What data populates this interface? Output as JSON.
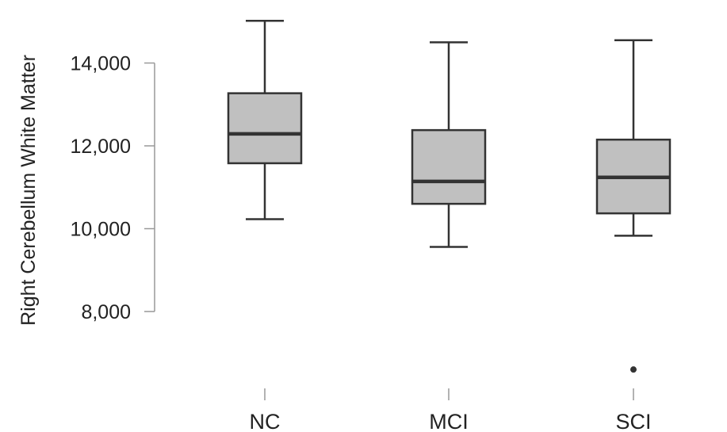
{
  "chart_data": {
    "type": "box",
    "title": "",
    "xlabel": "",
    "ylabel": "Right Cerebellum White Matter",
    "ylim": [
      6500,
      15200
    ],
    "yticks": [
      8000,
      10000,
      12000,
      14000
    ],
    "ytick_labels": [
      "8,000",
      "10,000",
      "12,000",
      "14,000"
    ],
    "grid": false,
    "categories": [
      "NC",
      "MCI",
      "SCI"
    ],
    "boxes": [
      {
        "category": "NC",
        "whisker_low": 10230,
        "q1": 11580,
        "median": 12290,
        "q3": 13270,
        "whisker_high": 15020,
        "outliers": []
      },
      {
        "category": "MCI",
        "whisker_low": 9560,
        "q1": 10600,
        "median": 11140,
        "q3": 12380,
        "whisker_high": 14500,
        "outliers": []
      },
      {
        "category": "SCI",
        "whisker_low": 9830,
        "q1": 10370,
        "median": 11240,
        "q3": 12150,
        "whisker_high": 14550,
        "outliers": [
          6600
        ]
      }
    ],
    "colors": {
      "box_fill": "#c0c0c0",
      "stroke": "#333333",
      "axis": "#999999"
    }
  }
}
